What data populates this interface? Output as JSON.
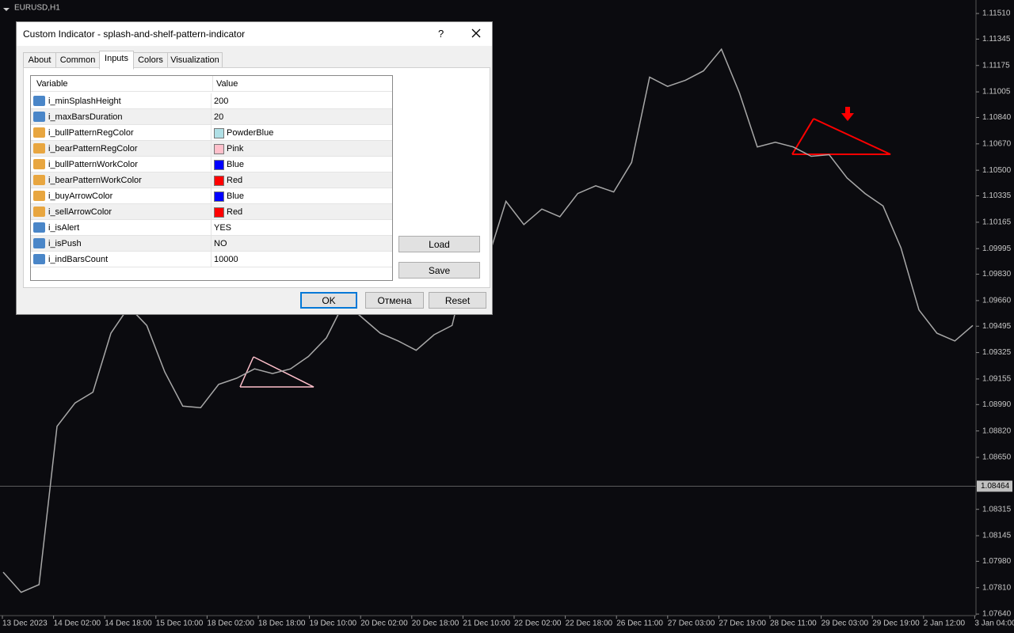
{
  "window": {
    "symbol": "EURUSD,H1"
  },
  "chart_data": {
    "type": "line",
    "color": "#a8a8a8",
    "values": [
      1.0791,
      1.0778,
      1.0783,
      1.0885,
      1.09,
      1.0907,
      1.0945,
      1.0962,
      1.095,
      1.092,
      1.0898,
      1.0897,
      1.0912,
      1.0916,
      1.0922,
      1.0919,
      1.0922,
      1.093,
      1.0942,
      1.0965,
      1.0955,
      1.0945,
      1.094,
      1.0934,
      1.0944,
      1.095,
      1.0998,
      1.0993,
      1.103,
      1.1015,
      1.1025,
      1.102,
      1.1035,
      1.104,
      1.1036,
      1.1055,
      1.111,
      1.1104,
      1.1108,
      1.1114,
      1.1128,
      1.11,
      1.1065,
      1.1068,
      1.1065,
      1.1059,
      1.106,
      1.1045,
      1.1035,
      1.1027,
      1.1,
      1.096,
      1.0945,
      1.094,
      1.095
    ],
    "time_labels": [
      "13 Dec 2023",
      "14 Dec 02:00",
      "14 Dec 18:00",
      "15 Dec 10:00",
      "18 Dec 02:00",
      "18 Dec 18:00",
      "19 Dec 10:00",
      "20 Dec 02:00",
      "20 Dec 18:00",
      "21 Dec 10:00",
      "22 Dec 02:00",
      "22 Dec 18:00",
      "26 Dec 11:00",
      "27 Dec 03:00",
      "27 Dec 19:00",
      "28 Dec 11:00",
      "29 Dec 03:00",
      "29 Dec 19:00",
      "2 Jan 12:00",
      "3 Jan 04:00"
    ],
    "ylim": [
      1.07569,
      1.11597
    ],
    "yticks": [
      {
        "value": 1.1151,
        "label": "1.11510"
      },
      {
        "value": 1.11345,
        "label": "1.11345"
      },
      {
        "value": 1.11175,
        "label": "1.11175"
      },
      {
        "value": 1.11005,
        "label": "1.11005"
      },
      {
        "value": 1.1084,
        "label": "1.10840"
      },
      {
        "value": 1.1067,
        "label": "1.10670"
      },
      {
        "value": 1.105,
        "label": "1.10500"
      },
      {
        "value": 1.10335,
        "label": "1.10335"
      },
      {
        "value": 1.10165,
        "label": "1.10165"
      },
      {
        "value": 1.09995,
        "label": "1.09995"
      },
      {
        "value": 1.0983,
        "label": "1.09830"
      },
      {
        "value": 1.0966,
        "label": "1.09660"
      },
      {
        "value": 1.09495,
        "label": "1.09495"
      },
      {
        "value": 1.09325,
        "label": "1.09325"
      },
      {
        "value": 1.09155,
        "label": "1.09155"
      },
      {
        "value": 1.0899,
        "label": "1.08990"
      },
      {
        "value": 1.0882,
        "label": "1.08820"
      },
      {
        "value": 1.0865,
        "label": "1.08650"
      },
      {
        "value": 1.08315,
        "label": "1.08315"
      },
      {
        "value": 1.08145,
        "label": "1.08145"
      },
      {
        "value": 1.0798,
        "label": "1.07980"
      },
      {
        "value": 1.0781,
        "label": "1.07810"
      },
      {
        "value": 1.0764,
        "label": "1.07640"
      }
    ],
    "current_price": {
      "value": 1.08464,
      "label": "1.08464"
    }
  },
  "dialog": {
    "title": "Custom Indicator - splash-and-shelf-pattern-indicator",
    "help": "?",
    "tabs": [
      "About",
      "Common",
      "Inputs",
      "Colors",
      "Visualization"
    ],
    "active_tab": 2,
    "table": {
      "headers": [
        "Variable",
        "Value"
      ],
      "rows": [
        {
          "variable": "i_minSplashHeight",
          "value": "200"
        },
        {
          "variable": "i_maxBarsDuration",
          "value": "20"
        },
        {
          "variable": "i_bullPatternRegColor",
          "value": "PowderBlue",
          "swatch": "#B0E0E6"
        },
        {
          "variable": "i_bearPatternRegColor",
          "value": "Pink",
          "swatch": "#FFC0CB"
        },
        {
          "variable": "i_bullPatternWorkColor",
          "value": "Blue",
          "swatch": "#0000FF"
        },
        {
          "variable": "i_bearPatternWorkColor",
          "value": "Red",
          "swatch": "#FF0000"
        },
        {
          "variable": "i_buyArrowColor",
          "value": "Blue",
          "swatch": "#0000FF"
        },
        {
          "variable": "i_sellArrowColor",
          "value": "Red",
          "swatch": "#FF0000"
        },
        {
          "variable": "i_isAlert",
          "value": "YES"
        },
        {
          "variable": "i_isPush",
          "value": "NO"
        },
        {
          "variable": "i_indBarsCount",
          "value": "10000"
        }
      ]
    },
    "buttons": {
      "load": "Load",
      "save": "Save",
      "ok": "OK",
      "cancel": "Отмена",
      "reset": "Reset"
    }
  }
}
